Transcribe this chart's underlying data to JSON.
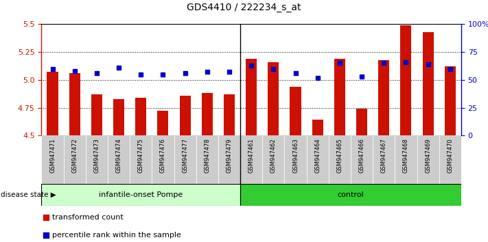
{
  "title": "GDS4410 / 222234_s_at",
  "samples": [
    "GSM947471",
    "GSM947472",
    "GSM947473",
    "GSM947474",
    "GSM947475",
    "GSM947476",
    "GSM947477",
    "GSM947478",
    "GSM947479",
    "GSM947461",
    "GSM947462",
    "GSM947463",
    "GSM947464",
    "GSM947465",
    "GSM947466",
    "GSM947467",
    "GSM947468",
    "GSM947469",
    "GSM947470"
  ],
  "red_values": [
    5.07,
    5.06,
    4.87,
    4.83,
    4.84,
    4.72,
    4.86,
    4.88,
    4.87,
    5.19,
    5.16,
    4.94,
    4.64,
    5.19,
    4.74,
    5.18,
    5.49,
    5.43,
    5.12
  ],
  "blue_values": [
    60,
    58,
    56,
    61,
    55,
    55,
    56,
    57,
    57,
    63,
    60,
    56,
    52,
    65,
    53,
    65,
    66,
    64,
    60
  ],
  "group1_label": "infantile-onset Pompe",
  "group2_label": "control",
  "group1_count": 9,
  "group2_count": 10,
  "ylim_left": [
    4.5,
    5.5
  ],
  "ylim_right": [
    0,
    100
  ],
  "yticks_left": [
    4.5,
    4.75,
    5.0,
    5.25,
    5.5
  ],
  "yticks_right": [
    0,
    25,
    50,
    75,
    100
  ],
  "ytick_labels_right": [
    "0",
    "25",
    "50",
    "75",
    "100%"
  ],
  "bar_color": "#CC1100",
  "dot_color": "#0000CC",
  "group1_bg": "#ccffcc",
  "group2_bg": "#33cc33",
  "legend_red_label": "transformed count",
  "legend_blue_label": "percentile rank within the sample",
  "disease_state_label": "disease state"
}
